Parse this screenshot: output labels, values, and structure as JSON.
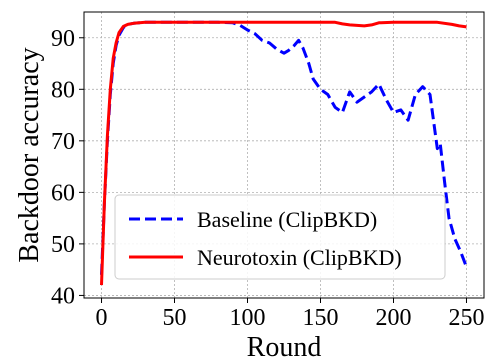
{
  "chart_data": {
    "type": "line",
    "title": "",
    "xlabel": "Round",
    "ylabel": "Backdoor accuracy",
    "xlim": [
      -12,
      262
    ],
    "ylim": [
      39.5,
      95
    ],
    "xticks": [
      0,
      50,
      100,
      150,
      200,
      250
    ],
    "yticks": [
      40,
      50,
      60,
      70,
      80,
      90
    ],
    "grid": true,
    "legend": {
      "position": "lower-center"
    },
    "series": [
      {
        "name": "Baseline (ClipBKD)",
        "color": "#0000ff",
        "style": "dashed",
        "x": [
          0,
          2,
          4,
          6,
          8,
          10,
          12,
          15,
          18,
          22,
          26,
          30,
          40,
          60,
          80,
          90,
          95,
          100,
          105,
          110,
          115,
          120,
          125,
          128,
          132,
          135,
          138,
          142,
          145,
          150,
          155,
          160,
          165,
          170,
          175,
          180,
          185,
          190,
          195,
          200,
          205,
          210,
          215,
          220,
          225,
          230,
          232,
          235,
          238,
          242,
          246,
          250
        ],
        "y": [
          44,
          58,
          70,
          79,
          85,
          88.5,
          90.5,
          92,
          92.6,
          92.8,
          92.9,
          93,
          93,
          93,
          93,
          92.9,
          92.4,
          91.5,
          90.8,
          89.5,
          89,
          87.8,
          87,
          87.5,
          88.5,
          89.5,
          88,
          85,
          82,
          80,
          79,
          76.5,
          75.5,
          79.5,
          77.5,
          78.5,
          79.5,
          81,
          78,
          75.5,
          76,
          74,
          79,
          80.5,
          79,
          68.5,
          69.5,
          62,
          55,
          51,
          48.5,
          45.5
        ]
      },
      {
        "name": "Neurotoxin (ClipBKD)",
        "color": "#ff0000",
        "style": "solid",
        "x": [
          0,
          2,
          4,
          6,
          8,
          10,
          12,
          15,
          18,
          22,
          26,
          30,
          40,
          60,
          80,
          100,
          120,
          140,
          160,
          165,
          170,
          180,
          185,
          190,
          200,
          210,
          220,
          230,
          240,
          245,
          250
        ],
        "y": [
          42,
          58,
          71,
          80,
          86,
          89,
          91,
          92.2,
          92.6,
          92.8,
          92.9,
          93,
          93,
          93,
          93,
          93,
          93,
          93,
          93,
          92.7,
          92.5,
          92.3,
          92.5,
          92.9,
          93,
          93,
          93,
          93,
          92.6,
          92.3,
          92.1
        ]
      }
    ]
  }
}
